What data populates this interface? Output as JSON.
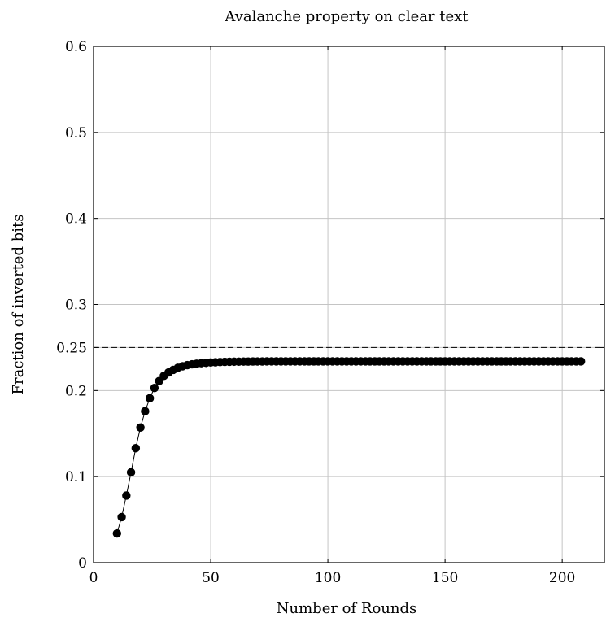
{
  "chart_data": {
    "type": "line",
    "title": "Avalanche property on clear text",
    "xlabel": "Number of Rounds",
    "ylabel": "Fraction of inverted bits",
    "xlim": [
      0,
      218
    ],
    "ylim": [
      0,
      0.6
    ],
    "xticks": [
      0,
      50,
      100,
      150,
      200
    ],
    "xtick_labels": [
      "0",
      "50",
      "100",
      "150",
      "200"
    ],
    "yticks": [
      0,
      0.1,
      0.2,
      0.25,
      0.3,
      0.4,
      0.5,
      0.6
    ],
    "ytick_labels": [
      "0",
      "0.1",
      "0.2",
      "0.25",
      "0.3",
      "0.4",
      "0.5",
      "0.6"
    ],
    "grid": true,
    "reference_line": {
      "y": 0.25,
      "style": "dashed"
    },
    "series": [
      {
        "color": "#000000",
        "marker": "circle",
        "x": [
          10,
          12,
          14,
          16,
          18,
          20,
          22,
          24,
          26,
          28,
          30,
          32,
          34,
          36,
          38,
          40,
          42,
          44,
          46,
          48,
          50,
          52,
          54,
          56,
          58,
          60,
          62,
          64,
          66,
          68,
          70,
          72,
          74,
          76,
          78,
          80,
          82,
          84,
          86,
          88,
          90,
          92,
          94,
          96,
          98,
          100,
          102,
          104,
          106,
          108,
          110,
          112,
          114,
          116,
          118,
          120,
          122,
          124,
          126,
          128,
          130,
          132,
          134,
          136,
          138,
          140,
          142,
          144,
          146,
          148,
          150,
          152,
          154,
          156,
          158,
          160,
          162,
          164,
          166,
          168,
          170,
          172,
          174,
          176,
          178,
          180,
          182,
          184,
          186,
          188,
          190,
          192,
          194,
          196,
          198,
          200,
          202,
          204,
          206,
          208
        ],
        "y": [
          0.034,
          0.053,
          0.078,
          0.105,
          0.133,
          0.157,
          0.176,
          0.191,
          0.203,
          0.211,
          0.217,
          0.221,
          0.224,
          0.2265,
          0.2282,
          0.2295,
          0.2305,
          0.2312,
          0.2318,
          0.2322,
          0.2326,
          0.2329,
          0.2331,
          0.2333,
          0.2334,
          0.2335,
          0.2336,
          0.2337,
          0.2337,
          0.2338,
          0.2338,
          0.2338,
          0.2339,
          0.2339,
          0.2339,
          0.2339,
          0.2339,
          0.2339,
          0.2339,
          0.2339,
          0.2339,
          0.2339,
          0.2339,
          0.2339,
          0.2339,
          0.2339,
          0.2339,
          0.2339,
          0.2339,
          0.2339,
          0.2339,
          0.2339,
          0.2339,
          0.2339,
          0.2339,
          0.2339,
          0.2339,
          0.2339,
          0.2339,
          0.2339,
          0.2339,
          0.2339,
          0.2339,
          0.2339,
          0.2339,
          0.2339,
          0.2339,
          0.2339,
          0.2339,
          0.2339,
          0.2339,
          0.2339,
          0.2339,
          0.2339,
          0.2339,
          0.2339,
          0.2339,
          0.2339,
          0.2339,
          0.2339,
          0.2339,
          0.2339,
          0.2339,
          0.2339,
          0.2339,
          0.2339,
          0.2339,
          0.2339,
          0.2339,
          0.2339,
          0.2339,
          0.2339,
          0.2339,
          0.2339,
          0.2339,
          0.2339,
          0.2339,
          0.2339,
          0.2339,
          0.2339
        ]
      }
    ]
  }
}
